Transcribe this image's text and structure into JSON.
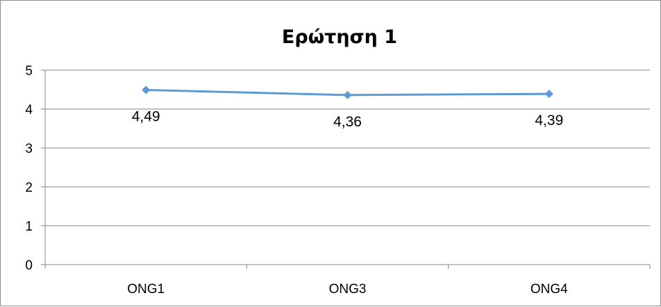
{
  "chart_data": {
    "type": "line",
    "title": "Ερώτηση 1",
    "categories": [
      "ONG1",
      "ONG3",
      "ONG4"
    ],
    "series": [
      {
        "values": [
          4.49,
          4.36,
          4.39
        ],
        "labels": [
          "4,49",
          "4,36",
          "4,39"
        ],
        "color": "#5b9bd5",
        "marker": "diamond"
      }
    ],
    "ylim": [
      0,
      5
    ],
    "yticks": [
      "0",
      "1",
      "2",
      "3",
      "4",
      "5"
    ],
    "grid": true,
    "legend": "none",
    "gridColor": "#868686",
    "axisColor": "#868686"
  }
}
